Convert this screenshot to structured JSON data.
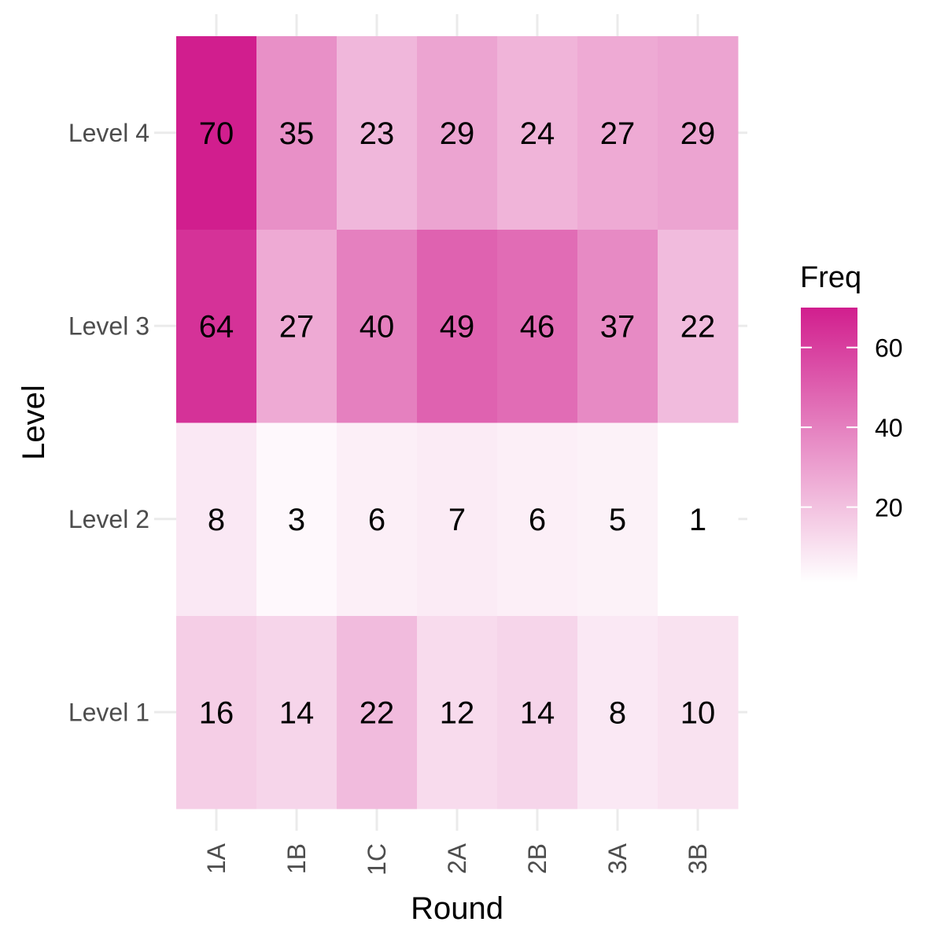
{
  "chart_data": {
    "type": "heatmap",
    "title": "",
    "xlabel": "Round",
    "ylabel": "Level",
    "x_categories": [
      "1A",
      "1B",
      "1C",
      "2A",
      "2B",
      "3A",
      "3B"
    ],
    "y_categories": [
      "Level 1",
      "Level 2",
      "Level 3",
      "Level 4"
    ],
    "values": [
      [
        16,
        14,
        22,
        12,
        14,
        8,
        10
      ],
      [
        8,
        3,
        6,
        7,
        6,
        5,
        1
      ],
      [
        64,
        27,
        40,
        49,
        46,
        37,
        22
      ],
      [
        70,
        35,
        23,
        29,
        24,
        27,
        29
      ]
    ],
    "legend": {
      "title": "Freq",
      "position": "right",
      "ticks": [
        20,
        40,
        60
      ],
      "range": [
        1,
        70
      ],
      "color_low": "#ffffff",
      "color_high": "#d11e8e"
    },
    "grid": true
  }
}
